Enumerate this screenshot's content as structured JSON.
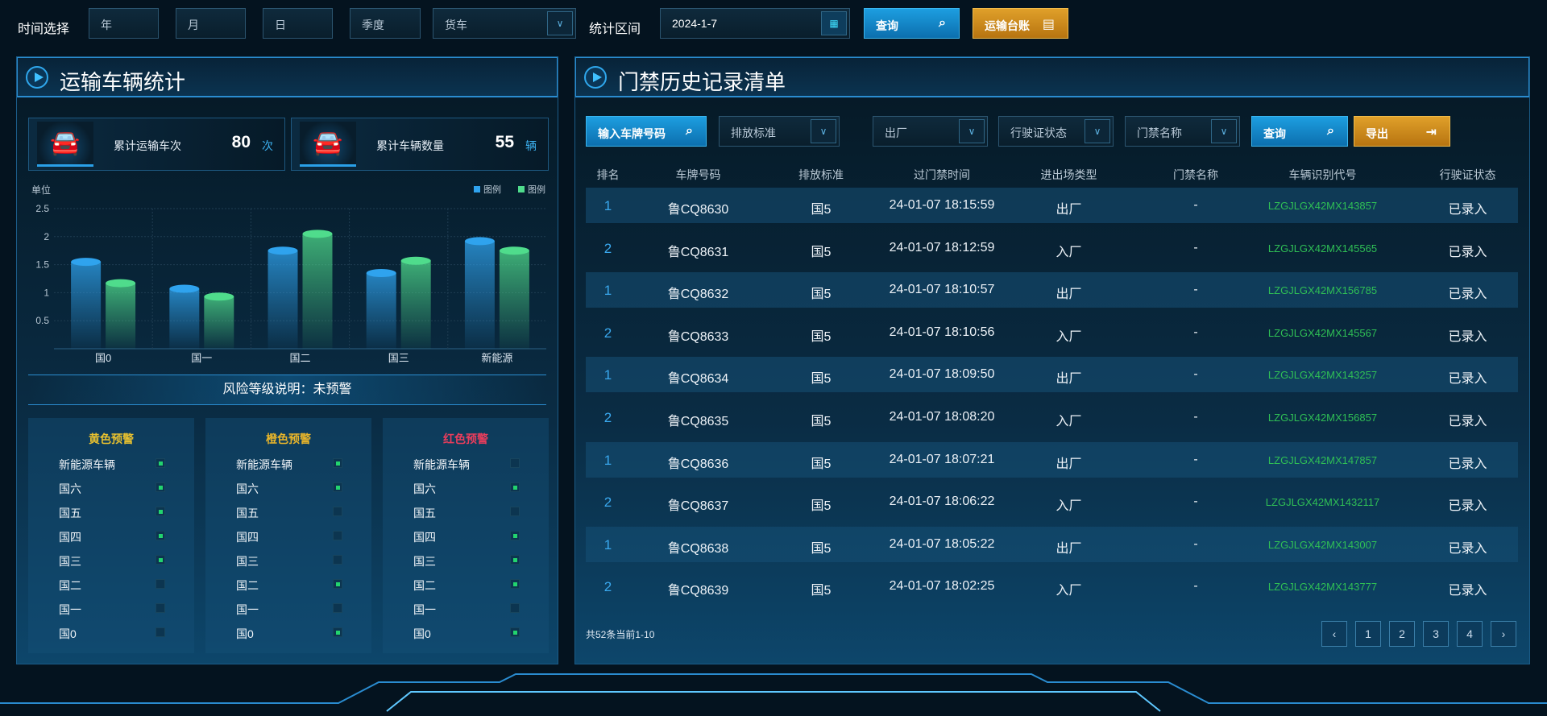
{
  "topbar": {
    "time_label": "时间选择",
    "year": "年",
    "month": "月",
    "day": "日",
    "quarter": "季度",
    "vehicle_type": "货车",
    "range_label": "统计区间",
    "date": "2024-1-7",
    "query": "查询",
    "ledger": "运输台账"
  },
  "left": {
    "title": "运输车辆统计",
    "stats": [
      {
        "label": "累计运输车次",
        "value": "80",
        "unit": "次"
      },
      {
        "label": "累计车辆数量",
        "value": "55",
        "unit": "辆"
      }
    ],
    "risk_label": "风险等级说明：未预警",
    "levels": [
      {
        "title": "黄色预警",
        "color": "#e8c12f",
        "items": [
          {
            "name": "新能源车辆",
            "on": true
          },
          {
            "name": "国六",
            "on": true
          },
          {
            "name": "国五",
            "on": true
          },
          {
            "name": "国四",
            "on": true
          },
          {
            "name": "国三",
            "on": true
          },
          {
            "name": "国二",
            "on": false
          },
          {
            "name": "国一",
            "on": false
          },
          {
            "name": "国0",
            "on": false
          }
        ]
      },
      {
        "title": "橙色预警",
        "color": "#e8b52a",
        "items": [
          {
            "name": "新能源车辆",
            "on": true
          },
          {
            "name": "国六",
            "on": true
          },
          {
            "name": "国五",
            "on": false
          },
          {
            "name": "国四",
            "on": false
          },
          {
            "name": "国三",
            "on": false
          },
          {
            "name": "国二",
            "on": true
          },
          {
            "name": "国一",
            "on": false
          },
          {
            "name": "国0",
            "on": true
          }
        ]
      },
      {
        "title": "红色预警",
        "color": "#ea3d5c",
        "items": [
          {
            "name": "新能源车辆",
            "on": false
          },
          {
            "name": "国六",
            "on": true
          },
          {
            "name": "国五",
            "on": false
          },
          {
            "name": "国四",
            "on": true
          },
          {
            "name": "国三",
            "on": true
          },
          {
            "name": "国二",
            "on": true
          },
          {
            "name": "国一",
            "on": false
          },
          {
            "name": "国0",
            "on": true
          }
        ]
      }
    ]
  },
  "chart_data": {
    "type": "bar",
    "ylabel": "单位",
    "categories": [
      "国0",
      "国一",
      "国二",
      "国三",
      "新能源"
    ],
    "ylim": [
      0,
      2.5
    ],
    "yticks": [
      0.5,
      1,
      1.5,
      2,
      2.5
    ],
    "grid": true,
    "legend_position": "top-right",
    "series": [
      {
        "name": "图例",
        "color": "#2fa3ee",
        "values": [
          1.55,
          1.07,
          1.75,
          1.35,
          1.92
        ]
      },
      {
        "name": "图例",
        "color": "#4fdc8c",
        "values": [
          1.17,
          0.93,
          2.05,
          1.57,
          1.75
        ]
      }
    ]
  },
  "right": {
    "title": "门禁历史记录清单",
    "filters": {
      "plate_placeholder": "输入车牌号码",
      "emission": "排放标准",
      "direction": "出厂",
      "license_status": "行驶证状态",
      "gate_name": "门禁名称",
      "query": "查询",
      "export": "导出"
    },
    "columns": [
      "排名",
      "车牌号码",
      "排放标准",
      "过门禁时间",
      "进出场类型",
      "门禁名称",
      "车辆识别代号",
      "行驶证状态"
    ],
    "rows": [
      [
        "1",
        "鲁CQ8630",
        "国5",
        "24-01-07 18:15:59",
        "出厂",
        "-",
        "LZGJLGX42MX143857",
        "已录入"
      ],
      [
        "2",
        "鲁CQ8631",
        "国5",
        "24-01-07 18:12:59",
        "入厂",
        "-",
        "LZGJLGX42MX145565",
        "已录入"
      ],
      [
        "1",
        "鲁CQ8632",
        "国5",
        "24-01-07 18:10:57",
        "出厂",
        "-",
        "LZGJLGX42MX156785",
        "已录入"
      ],
      [
        "2",
        "鲁CQ8633",
        "国5",
        "24-01-07 18:10:56",
        "入厂",
        "-",
        "LZGJLGX42MX145567",
        "已录入"
      ],
      [
        "1",
        "鲁CQ8634",
        "国5",
        "24-01-07 18:09:50",
        "出厂",
        "-",
        "LZGJLGX42MX143257",
        "已录入"
      ],
      [
        "2",
        "鲁CQ8635",
        "国5",
        "24-01-07 18:08:20",
        "入厂",
        "-",
        "LZGJLGX42MX156857",
        "已录入"
      ],
      [
        "1",
        "鲁CQ8636",
        "国5",
        "24-01-07 18:07:21",
        "出厂",
        "-",
        "LZGJLGX42MX147857",
        "已录入"
      ],
      [
        "2",
        "鲁CQ8637",
        "国5",
        "24-01-07 18:06:22",
        "入厂",
        "-",
        "LZGJLGX42MX1432117",
        "已录入"
      ],
      [
        "1",
        "鲁CQ8638",
        "国5",
        "24-01-07 18:05:22",
        "出厂",
        "-",
        "LZGJLGX42MX143007",
        "已录入"
      ],
      [
        "2",
        "鲁CQ8639",
        "国5",
        "24-01-07 18:02:25",
        "入厂",
        "-",
        "LZGJLGX42MX143777",
        "已录入"
      ]
    ],
    "pagination": {
      "summary": "共52条当前1-10",
      "prev": "‹",
      "pages": [
        "1",
        "2",
        "3",
        "4"
      ],
      "next": "›"
    }
  },
  "colors": {
    "rank": "#3aa8ee",
    "vin": "#2fbf55",
    "accent": "#2a8cd0"
  }
}
